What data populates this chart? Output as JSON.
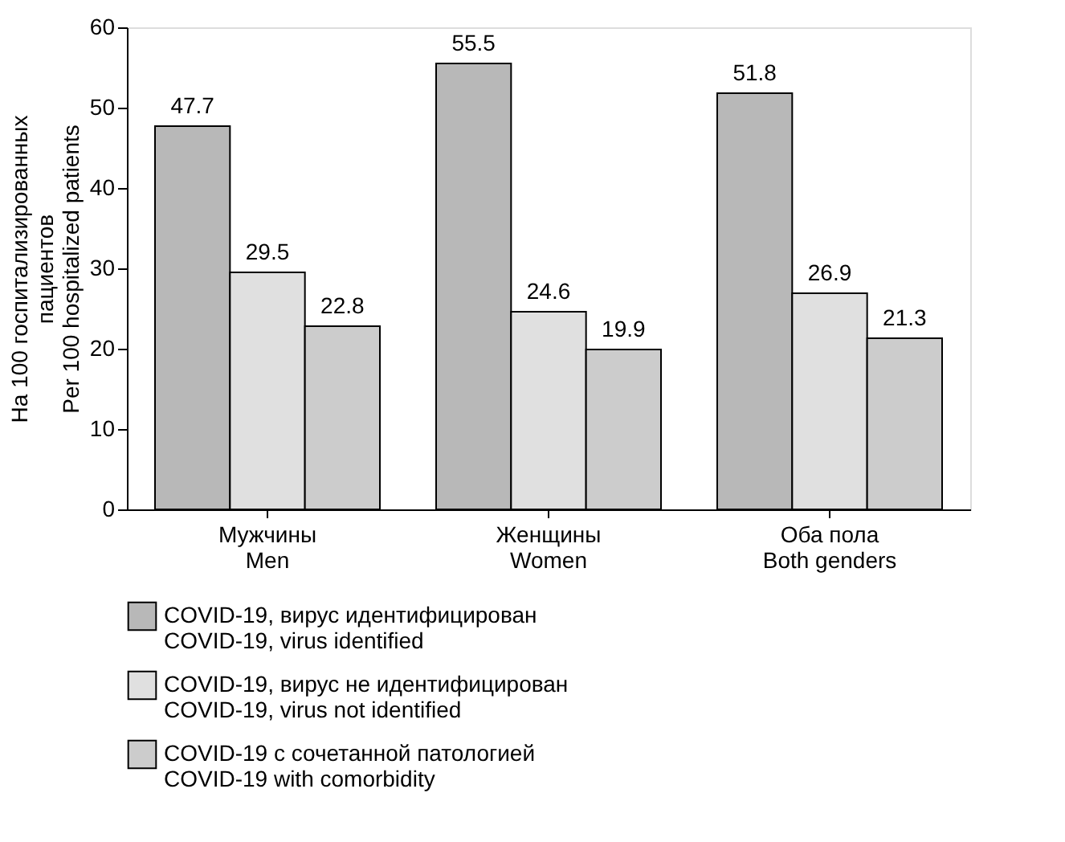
{
  "chart_data": {
    "type": "bar",
    "ylabel": "На 100 госпитализированных\nпациентов\nPer 100 hospitalized patients",
    "categories": [
      "Мужчины\nMen",
      "Женщины\nWomen",
      "Оба пола\nBoth genders"
    ],
    "series": [
      {
        "name": "COVID-19, вирус идентифицирован\nCOVID-19, virus identified",
        "color": "#b8b8b8",
        "values": [
          47.7,
          55.5,
          51.8
        ]
      },
      {
        "name": "COVID-19, вирус не идентифицирован\nCOVID-19, virus not identified",
        "color": "#e0e0e0",
        "values": [
          29.5,
          24.6,
          26.9
        ]
      },
      {
        "name": "COVID-19 с сочетанной патологией\nCOVID-19 with comorbidity",
        "color": "#cccccc",
        "values": [
          22.8,
          19.9,
          21.3
        ]
      }
    ],
    "ylim": [
      0,
      60
    ],
    "yticks": [
      0,
      10,
      20,
      30,
      40,
      50,
      60
    ],
    "data_labels": true,
    "grid": false,
    "legend": "bottom"
  }
}
